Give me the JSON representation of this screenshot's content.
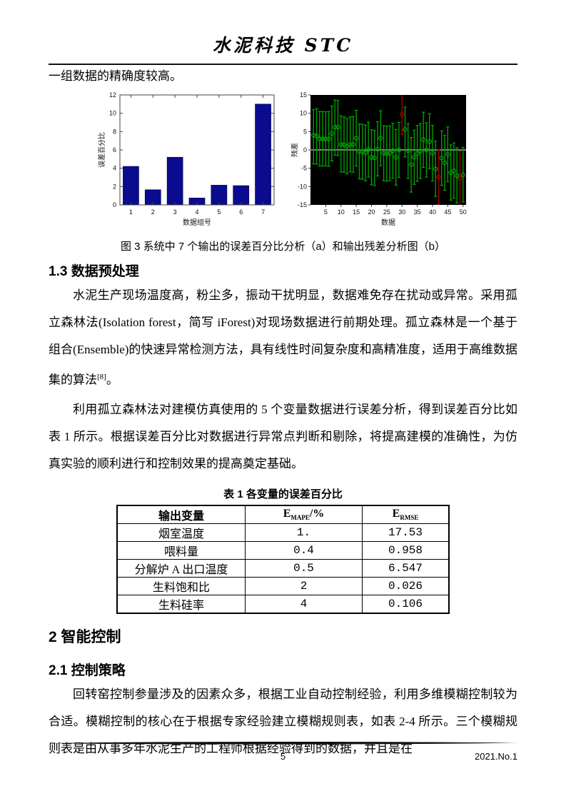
{
  "header": {
    "journal_title": "水泥科技 STC"
  },
  "intro_text": "一组数据的精确度较高。",
  "figure": {
    "caption": "图 3 系统中 7 个输出的误差百分比分析（a）和输出残差分析图（b）"
  },
  "sections": {
    "s13_title": "1.3 数据预处理",
    "p1_main": "水泥生产现场温度高，粉尘多，振动干扰明显，数据难免存在扰动或异常。采用孤立森林法(Isolation forest，简写 iForest)对现场数据进行前期处理。孤立森林是一个基于组合(Ensemble)的快速异常检测方法，具有线性时间复杂度和高精准度，适用于高维数据集的算法",
    "p1_ref": "[8]",
    "p1_end": "。",
    "p2": "利用孤立森林法对建模仿真使用的 5 个变量数据进行误差分析，得到误差百分比如表 1 所示。根据误差百分比对数据进行异常点判断和剔除，将提高建模的准确性，为仿真实验的顺利进行和控制效果的提高奠定基础。",
    "s2_title": "2 智能控制",
    "s21_title": "2.1 控制策略",
    "p3": "回转窑控制参量涉及的因素众多，根据工业自动控制经验，利用多维模糊控制较为合适。模糊控制的核心在于根据专家经验建立模糊规则表，如表 2-4 所示。三个模糊规则表是由从事多年水泥生产的工程师根据经验得到的数据，并且是在"
  },
  "table": {
    "caption": "表 1 各变量的误差百分比",
    "col1_header": "输出变量",
    "col2_e": "E",
    "col2_sub": "MAPE",
    "col2_suffix": "/%",
    "col3_e": "E",
    "col3_sub": "RMSE",
    "rows": [
      [
        "烟室温度",
        "1.",
        "17.53"
      ],
      [
        "喂料量",
        "0.4",
        "0.958"
      ],
      [
        "分解炉 A 出口温度",
        "0.5",
        "6.547"
      ],
      [
        "生料饱和比",
        "2",
        "0.026"
      ],
      [
        "生料硅率",
        "4",
        "0.106"
      ]
    ]
  },
  "footer": {
    "page_number": "5",
    "issue": "2021.No.1"
  },
  "chart_data": [
    {
      "type": "bar",
      "title": "",
      "categories": [
        "1",
        "2",
        "3",
        "4",
        "5",
        "6",
        "7"
      ],
      "values": [
        4.2,
        1.65,
        5.2,
        0.75,
        2.15,
        2.1,
        11
      ],
      "xlabel": "数据组号",
      "ylabel": "误差百分比",
      "ylim": [
        0,
        12
      ],
      "yticks": [
        0,
        2,
        4,
        6,
        8,
        10,
        12
      ],
      "bar_color": "#0b0b8f",
      "grid": false,
      "legend": "none"
    },
    {
      "type": "errorbar",
      "title": "",
      "xlabel": "数据",
      "ylabel": "残差",
      "xlim": [
        0,
        51
      ],
      "ylim": [
        -15,
        15
      ],
      "xticks": [
        5,
        10,
        15,
        20,
        25,
        30,
        35,
        40,
        45,
        50
      ],
      "yticks": [
        -15,
        -10,
        -5,
        0,
        5,
        10,
        15
      ],
      "background": "#000000",
      "normal_color": "#00a800",
      "outlier_color": "#aa0000",
      "zero_line_color": "#cccccc",
      "x": [
        1,
        2,
        3,
        4,
        5,
        6,
        7,
        8,
        9,
        10,
        11,
        12,
        13,
        14,
        15,
        16,
        17,
        18,
        19,
        20,
        21,
        22,
        23,
        24,
        25,
        26,
        27,
        28,
        29,
        30,
        31,
        32,
        33,
        34,
        35,
        36,
        37,
        38,
        39,
        40,
        41,
        42,
        43,
        44,
        45,
        46,
        47,
        48,
        49,
        50
      ],
      "y": [
        4.0,
        3.8,
        3.0,
        3.0,
        3.0,
        3.0,
        4.5,
        6.2,
        6.2,
        1.5,
        1.4,
        1.0,
        1.5,
        1.5,
        3.2,
        -0.4,
        -0.5,
        -0.8,
        0.1,
        -2.0,
        -2.2,
        0.2,
        3.2,
        -0.9,
        -1.0,
        -0.9,
        -0.2,
        -2.0,
        0.0,
        9.7,
        5.6,
        -0.2,
        -4.0,
        -2.0,
        -1.0,
        -0.3,
        2.8,
        0.0,
        2.3,
        -0.9,
        -5.2,
        -7.4,
        -2.2,
        -3.5,
        -1.2,
        -6.2,
        -5.7,
        -7.0,
        -7.8,
        -6.8
      ],
      "lo": [
        -3.8,
        -3.9,
        -4.4,
        -4.4,
        -4.3,
        -4.5,
        -3.0,
        -1.4,
        -1.5,
        -6.0,
        -6.1,
        -6.5,
        -6.0,
        -6.1,
        -4.4,
        -7.9,
        -8.0,
        -8.4,
        -7.4,
        -9.5,
        -9.7,
        -7.1,
        -4.3,
        -8.4,
        -8.5,
        -8.4,
        -7.7,
        -9.6,
        -7.5,
        4.2,
        -1.9,
        -7.8,
        -11.5,
        -9.4,
        -8.6,
        -7.8,
        -4.8,
        -7.4,
        -5.1,
        -8.5,
        -12.7,
        -14.9,
        -9.7,
        -11.0,
        -8.7,
        -13.7,
        -13.2,
        -14.5,
        -15.2,
        -14.2
      ],
      "hi": [
        11.0,
        11.3,
        10.5,
        10.5,
        10.4,
        10.5,
        12.0,
        13.6,
        13.5,
        9.3,
        9.0,
        8.6,
        9.0,
        9.1,
        10.8,
        7.1,
        7.0,
        6.8,
        7.6,
        5.5,
        5.3,
        7.7,
        10.7,
        6.6,
        6.5,
        6.6,
        7.3,
        5.6,
        7.5,
        15.2,
        11.7,
        7.2,
        3.4,
        5.4,
        6.7,
        7.2,
        10.3,
        7.4,
        9.9,
        6.7,
        2.4,
        0.1,
        5.2,
        4.0,
        6.3,
        1.4,
        1.9,
        0.6,
        -0.4,
        0.7
      ],
      "outlier_x": [
        30,
        42,
        49
      ]
    }
  ]
}
